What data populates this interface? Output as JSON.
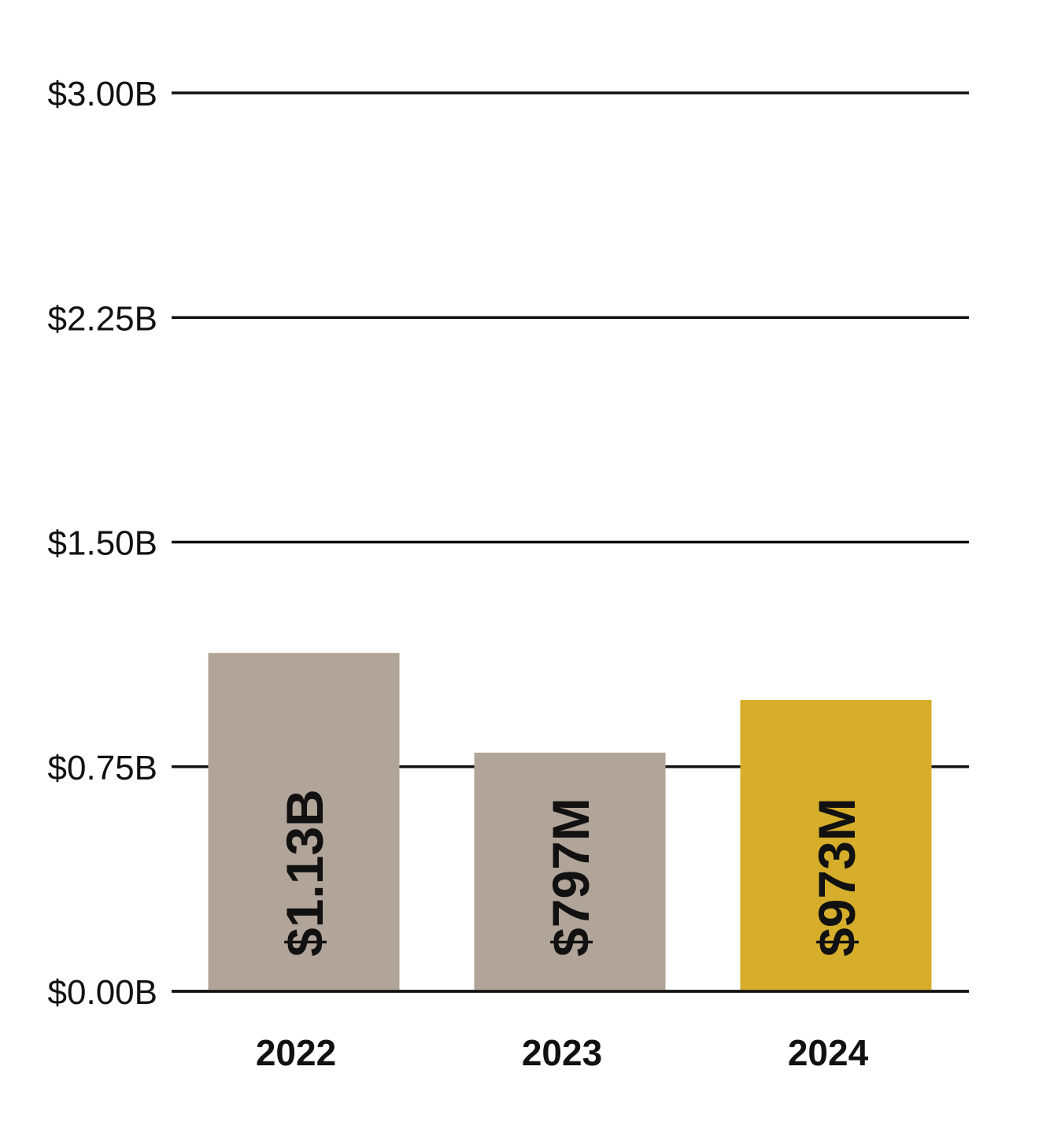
{
  "chart_data": {
    "type": "bar",
    "categories": [
      "2022",
      "2023",
      "2024"
    ],
    "values": [
      1.13,
      0.797,
      0.973
    ],
    "value_labels": [
      "$1.13B",
      "$797M",
      "$973M"
    ],
    "yticks": [
      0,
      0.75,
      1.5,
      2.25,
      3.0
    ],
    "ytick_labels": [
      "$0.00B",
      "$0.75B",
      "$1.50B",
      "$2.25B",
      "$3.00B"
    ],
    "ylim": [
      0,
      3.0
    ],
    "grid": true,
    "colors": [
      "#b1a498",
      "#b1a498",
      "#d6ae2b"
    ],
    "grid_color": "#111111"
  }
}
